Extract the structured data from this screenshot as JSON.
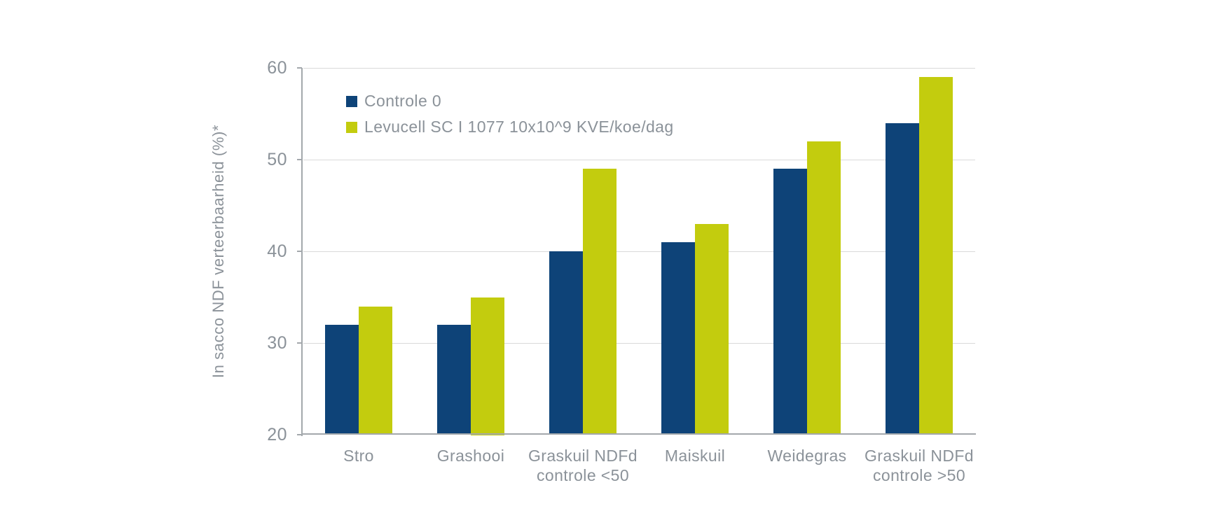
{
  "page": {
    "background": "#ffffff"
  },
  "colors": {
    "text": "#8b9299",
    "grid": "#dadada",
    "axis": "#a3a8ac"
  },
  "chart_data": {
    "type": "bar",
    "title": "",
    "ylabel": "In sacco NDF verteerbaarheid (%)*",
    "xlabel": "",
    "ylim": [
      20,
      60
    ],
    "yticks": [
      20,
      30,
      40,
      50,
      60
    ],
    "grid": true,
    "legend_position": "top-left-inside",
    "categories": [
      "Stro",
      "Grashooi",
      "Graskuil NDFd\ncontrole <50",
      "Maiskuil",
      "Weidegras",
      "Graskuil NDFd\ncontrole >50"
    ],
    "series": [
      {
        "name": "Controle 0",
        "color": "#0e4378",
        "values": [
          32,
          32,
          40,
          41,
          49,
          54
        ]
      },
      {
        "name": "Levucell SC I 1077 10x10^9 KVE/koe/dag",
        "color": "#c3cc0e",
        "values": [
          34,
          35,
          49,
          43,
          52,
          59
        ]
      }
    ]
  }
}
